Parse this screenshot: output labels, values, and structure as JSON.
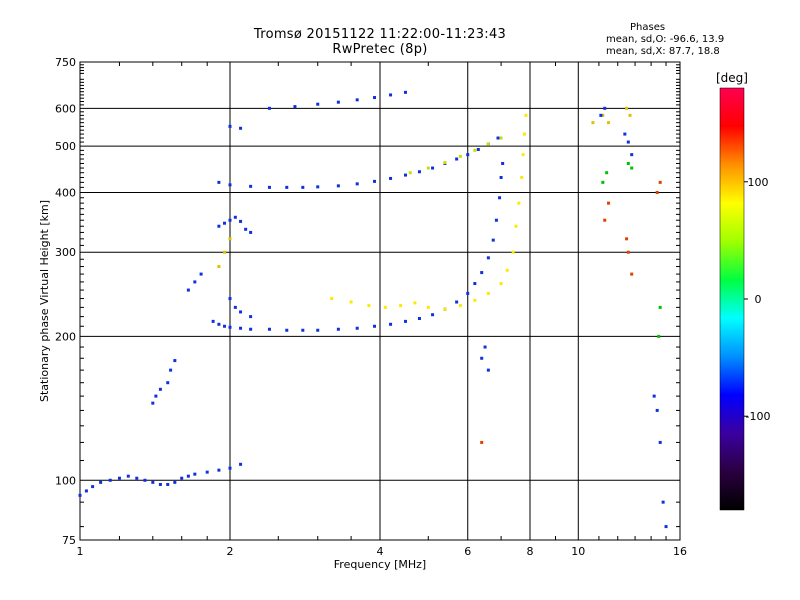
{
  "chart_data": {
    "type": "scatter",
    "title": "Tromsø 20151122 11:22:00-11:23:43",
    "subtitle": "RwPretec (8p)",
    "xlabel": "Frequency [MHz]",
    "ylabel": "Stationary phase Virtual Height [km]",
    "x_scale": "log",
    "y_scale": "log",
    "xlim": [
      1,
      16
    ],
    "ylim": [
      75,
      750
    ],
    "x_ticks": [
      {
        "value": 1,
        "label": "1"
      },
      {
        "value": 2,
        "label": "2"
      },
      {
        "value": 4,
        "label": "4"
      },
      {
        "value": 6,
        "label": "6"
      },
      {
        "value": 8,
        "label": "8"
      },
      {
        "value": 10,
        "label": "10"
      },
      {
        "value": 16,
        "label": "16"
      }
    ],
    "y_ticks": [
      {
        "value": 75,
        "label": "75"
      },
      {
        "value": 100,
        "label": "100"
      },
      {
        "value": 200,
        "label": "200"
      },
      {
        "value": 300,
        "label": "300"
      },
      {
        "value": 400,
        "label": "400"
      },
      {
        "value": 500,
        "label": "500"
      },
      {
        "value": 600,
        "label": "600"
      },
      {
        "value": 750,
        "label": "750"
      }
    ],
    "x_gridlines": [
      2,
      4,
      6,
      8,
      10
    ],
    "y_gridlines": [
      100,
      200,
      300,
      400,
      500,
      600
    ],
    "grid": true,
    "stats_title": "Phases",
    "stats_lines": [
      "mean, sd,O:  -96.6, 13.9",
      "mean, sd,X:   87.7, 18.8"
    ],
    "colorbar": {
      "label": "[deg]",
      "range": [
        -180,
        180
      ],
      "ticks": [
        {
          "value": 100,
          "label": "100"
        },
        {
          "value": 0,
          "label": "0"
        },
        {
          "value": -100,
          "label": "-100"
        }
      ],
      "colors": [
        "#000000",
        "#2a0040",
        "#3b00a0",
        "#0000ff",
        "#0090ff",
        "#00ffff",
        "#00ff40",
        "#a0ff00",
        "#ffff00",
        "#ff9000",
        "#ff0000",
        "#ff0050"
      ]
    },
    "series": [
      {
        "color": "#1030e0",
        "points": [
          [
            1.0,
            93
          ],
          [
            1.03,
            95
          ],
          [
            1.06,
            97
          ],
          [
            1.1,
            99
          ],
          [
            1.15,
            100
          ],
          [
            1.2,
            101
          ],
          [
            1.25,
            102
          ],
          [
            1.3,
            101
          ],
          [
            1.35,
            100
          ],
          [
            1.4,
            99
          ],
          [
            1.45,
            98
          ],
          [
            1.5,
            98
          ],
          [
            1.55,
            99
          ],
          [
            1.6,
            101
          ],
          [
            1.65,
            102
          ],
          [
            1.7,
            103
          ],
          [
            1.8,
            104
          ],
          [
            1.9,
            105
          ],
          [
            2.0,
            106
          ],
          [
            2.1,
            108
          ]
        ]
      },
      {
        "color": "#1030e0",
        "points": [
          [
            1.4,
            145
          ],
          [
            1.42,
            150
          ],
          [
            1.45,
            155
          ],
          [
            1.5,
            160
          ],
          [
            1.52,
            170
          ],
          [
            1.55,
            178
          ],
          [
            1.65,
            250
          ],
          [
            1.7,
            260
          ],
          [
            1.75,
            270
          ]
        ]
      },
      {
        "color": "#1030e0",
        "points": [
          [
            1.85,
            215
          ],
          [
            1.9,
            212
          ],
          [
            1.95,
            210
          ],
          [
            2.0,
            209
          ],
          [
            2.1,
            208
          ],
          [
            2.2,
            207
          ],
          [
            2.4,
            207
          ],
          [
            2.6,
            206
          ],
          [
            2.8,
            206
          ],
          [
            3.0,
            206
          ],
          [
            3.3,
            207
          ],
          [
            3.6,
            208
          ],
          [
            3.9,
            210
          ],
          [
            4.2,
            212
          ],
          [
            4.5,
            215
          ],
          [
            4.8,
            218
          ],
          [
            5.1,
            222
          ],
          [
            5.4,
            228
          ],
          [
            5.7,
            236
          ],
          [
            6.0,
            246
          ],
          [
            6.2,
            258
          ],
          [
            6.4,
            272
          ],
          [
            6.6,
            292
          ],
          [
            6.75,
            318
          ],
          [
            6.85,
            350
          ],
          [
            6.95,
            390
          ],
          [
            7.0,
            430
          ],
          [
            7.05,
            460
          ]
        ]
      },
      {
        "color": "#ffe800",
        "points": [
          [
            3.2,
            240
          ],
          [
            3.5,
            236
          ],
          [
            3.8,
            232
          ],
          [
            4.1,
            230
          ],
          [
            4.4,
            232
          ],
          [
            4.7,
            235
          ],
          [
            5.0,
            230
          ],
          [
            5.4,
            228
          ],
          [
            5.8,
            232
          ],
          [
            6.2,
            238
          ],
          [
            6.6,
            246
          ],
          [
            7.0,
            258
          ],
          [
            7.2,
            275
          ],
          [
            7.4,
            300
          ],
          [
            7.5,
            340
          ],
          [
            7.6,
            380
          ],
          [
            7.7,
            430
          ],
          [
            7.75,
            480
          ],
          [
            7.8,
            530
          ],
          [
            7.85,
            580
          ]
        ]
      },
      {
        "color": "#1030e0",
        "points": [
          [
            1.9,
            420
          ],
          [
            2.0,
            415
          ],
          [
            2.2,
            412
          ],
          [
            2.4,
            410
          ],
          [
            2.6,
            410
          ],
          [
            2.8,
            410
          ],
          [
            3.0,
            411
          ],
          [
            3.3,
            413
          ],
          [
            3.6,
            417
          ],
          [
            3.9,
            422
          ],
          [
            4.2,
            428
          ],
          [
            4.5,
            435
          ],
          [
            4.8,
            442
          ],
          [
            5.1,
            450
          ],
          [
            5.4,
            460
          ],
          [
            5.7,
            470
          ],
          [
            6.0,
            480
          ],
          [
            6.3,
            492
          ],
          [
            6.6,
            505
          ],
          [
            6.9,
            520
          ]
        ]
      },
      {
        "color": "#c8e000",
        "points": [
          [
            4.6,
            440
          ],
          [
            5.0,
            450
          ],
          [
            5.4,
            462
          ],
          [
            5.8,
            476
          ],
          [
            6.2,
            490
          ],
          [
            6.6,
            505
          ],
          [
            7.0,
            520
          ]
        ]
      },
      {
        "color": "#1030e0",
        "points": [
          [
            2.4,
            600
          ],
          [
            2.7,
            605
          ],
          [
            3.0,
            612
          ],
          [
            3.3,
            618
          ],
          [
            3.6,
            625
          ],
          [
            3.9,
            632
          ],
          [
            4.2,
            640
          ],
          [
            4.5,
            648
          ]
        ]
      },
      {
        "color": "#1030e0",
        "points": [
          [
            1.9,
            340
          ],
          [
            1.95,
            345
          ],
          [
            2.0,
            350
          ],
          [
            2.05,
            355
          ],
          [
            2.1,
            348
          ],
          [
            2.15,
            335
          ],
          [
            2.2,
            330
          ],
          [
            2.0,
            550
          ],
          [
            2.1,
            545
          ],
          [
            2.0,
            240
          ],
          [
            2.05,
            230
          ],
          [
            2.1,
            225
          ],
          [
            2.2,
            220
          ]
        ]
      },
      {
        "color": "#e0c000",
        "points": [
          [
            1.9,
            280
          ],
          [
            1.95,
            300
          ],
          [
            2.0,
            320
          ],
          [
            10.7,
            560
          ],
          [
            11.2,
            580
          ],
          [
            11.5,
            560
          ],
          [
            12.5,
            600
          ],
          [
            12.7,
            580
          ]
        ]
      },
      {
        "color": "#1030e0",
        "points": [
          [
            11.1,
            580
          ],
          [
            11.3,
            600
          ],
          [
            12.4,
            530
          ],
          [
            12.6,
            510
          ],
          [
            12.8,
            480
          ],
          [
            14.2,
            150
          ],
          [
            14.4,
            140
          ],
          [
            14.6,
            120
          ],
          [
            14.8,
            90
          ],
          [
            15.0,
            80
          ],
          [
            6.4,
            180
          ],
          [
            6.5,
            190
          ],
          [
            6.6,
            170
          ]
        ]
      },
      {
        "color": "#e04000",
        "points": [
          [
            11.3,
            350
          ],
          [
            11.5,
            380
          ],
          [
            12.5,
            320
          ],
          [
            12.6,
            300
          ],
          [
            12.8,
            270
          ],
          [
            14.4,
            400
          ],
          [
            14.6,
            420
          ],
          [
            6.4,
            120
          ]
        ]
      },
      {
        "color": "#00c000",
        "points": [
          [
            11.2,
            420
          ],
          [
            11.4,
            440
          ],
          [
            12.6,
            460
          ],
          [
            12.8,
            450
          ],
          [
            14.5,
            200
          ],
          [
            14.6,
            230
          ]
        ]
      }
    ]
  }
}
